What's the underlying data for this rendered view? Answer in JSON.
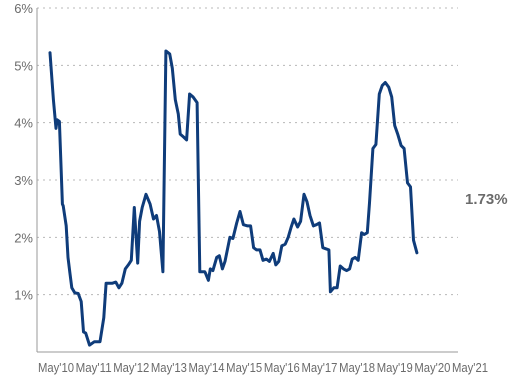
{
  "chart_data": {
    "type": "line",
    "title": "",
    "xlabel": "",
    "ylabel": "",
    "grid": true,
    "colors": {
      "line": "#0f3c7a",
      "grid": "#b8b8b8",
      "axis": "#999999",
      "text": "#6b6b6b"
    },
    "x_range": [
      2010.33,
      2021.33
    ],
    "ylim": [
      0,
      6
    ],
    "y_ticks": [
      {
        "value": 1,
        "label": "1%"
      },
      {
        "value": 2,
        "label": "2%"
      },
      {
        "value": 3,
        "label": "3%"
      },
      {
        "value": 4,
        "label": "4%"
      },
      {
        "value": 5,
        "label": "5%"
      },
      {
        "value": 6,
        "label": "6%"
      }
    ],
    "x_ticks": [
      {
        "value": 2010.33,
        "label": "May'10"
      },
      {
        "value": 2011.33,
        "label": "May'11"
      },
      {
        "value": 2012.33,
        "label": "May'12"
      },
      {
        "value": 2013.33,
        "label": "May'13"
      },
      {
        "value": 2014.33,
        "label": "May'14"
      },
      {
        "value": 2015.33,
        "label": "May'15"
      },
      {
        "value": 2016.33,
        "label": "May'16"
      },
      {
        "value": 2017.33,
        "label": "May'17"
      },
      {
        "value": 2018.33,
        "label": "May'18"
      },
      {
        "value": 2019.33,
        "label": "May'19"
      },
      {
        "value": 2020.33,
        "label": "May'20"
      },
      {
        "value": 2021.33,
        "label": "May'21"
      }
    ],
    "end_label": "1.73%",
    "series": [
      {
        "x": [
          2010.17,
          2010.26,
          2010.33,
          2010.36,
          2010.42,
          2010.5,
          2010.52,
          2010.6,
          2010.65,
          2010.7,
          2010.75,
          2010.83,
          2010.92,
          2011.0,
          2011.06,
          2011.12,
          2011.22,
          2011.35,
          2011.45,
          2011.5,
          2011.6,
          2011.66,
          2011.75,
          2011.83,
          2011.92,
          2012.0,
          2012.08,
          2012.17,
          2012.25,
          2012.33,
          2012.41,
          2012.5,
          2012.55,
          2012.62,
          2012.72,
          2012.83,
          2012.92,
          2013.0,
          2013.08,
          2013.17,
          2013.25,
          2013.35,
          2013.42,
          2013.5,
          2013.58,
          2013.63,
          2013.72,
          2013.8,
          2013.88,
          2013.97,
          2014.08,
          2014.15,
          2014.22,
          2014.28,
          2014.3,
          2014.38,
          2014.43,
          2014.5,
          2014.6,
          2014.67,
          2014.75,
          2014.82,
          2014.95,
          2015.03,
          2015.13,
          2015.22,
          2015.31,
          2015.42,
          2015.5,
          2015.58,
          2015.66,
          2015.75,
          2015.83,
          2015.92,
          2016.0,
          2016.1,
          2016.17,
          2016.25,
          2016.33,
          2016.42,
          2016.5,
          2016.58,
          2016.65,
          2016.75,
          2016.83,
          2016.92,
          2017.0,
          2017.08,
          2017.17,
          2017.25,
          2017.33,
          2017.42,
          2017.5,
          2017.58,
          2017.62,
          2017.71,
          2017.8,
          2017.88,
          2017.97,
          2018.05,
          2018.13,
          2018.2,
          2018.28,
          2018.36,
          2018.45,
          2018.52,
          2018.6,
          2018.66,
          2018.75,
          2018.83,
          2018.92,
          2019.0,
          2019.08,
          2019.17,
          2019.25,
          2019.33,
          2019.41,
          2019.5,
          2019.58,
          2019.67,
          2019.75,
          2019.83,
          2019.92,
          2020.0,
          2020.05,
          2020.12,
          2020.2,
          2020.28,
          2020.38,
          2020.47,
          2020.55,
          2020.63,
          2020.72,
          2020.8,
          2020.88,
          2020.97,
          2021.04
        ],
        "values": [
          5.22,
          4.4,
          3.9,
          4.05,
          4.02,
          2.58,
          2.55,
          2.2,
          1.65,
          1.38,
          1.12,
          1.03,
          1.02,
          0.88,
          0.35,
          0.33,
          0.12,
          0.18,
          0.18,
          0.18,
          0.6,
          1.2,
          1.2,
          1.2,
          1.22,
          1.12,
          1.2,
          1.45,
          1.52,
          1.6,
          2.52,
          1.55,
          2.28,
          2.52,
          2.75,
          2.58,
          2.32,
          2.38,
          2.1,
          1.4,
          5.25,
          5.2,
          4.95,
          4.4,
          4.15,
          3.8,
          3.75,
          3.7,
          4.5,
          4.45,
          4.35,
          1.4,
          1.4,
          1.4,
          1.38,
          1.25,
          1.45,
          1.42,
          1.65,
          1.68,
          1.45,
          1.58,
          2.0,
          1.98,
          2.25,
          2.45,
          2.22,
          2.2,
          2.2,
          1.82,
          1.78,
          1.78,
          1.6,
          1.62,
          1.58,
          1.72,
          1.52,
          1.58,
          1.85,
          1.88,
          2.0,
          2.18,
          2.32,
          2.18,
          2.28,
          2.75,
          2.62,
          2.38,
          2.2,
          2.22,
          2.25,
          1.82,
          1.8,
          1.78,
          1.05,
          1.12,
          1.12,
          1.5,
          1.45,
          1.42,
          1.45,
          1.62,
          1.65,
          1.6,
          2.08,
          2.05,
          2.08,
          2.6,
          3.55,
          3.62,
          4.5,
          4.65,
          4.7,
          4.62,
          4.45,
          3.95,
          3.8,
          3.6,
          3.55,
          2.95,
          2.88,
          1.95,
          1.73,
          1.73,
          1.73,
          1.73,
          1.73,
          1.73,
          1.73,
          1.73,
          1.73,
          1.73,
          1.73,
          1.73,
          1.73,
          1.73,
          1.73
        ]
      }
    ]
  }
}
